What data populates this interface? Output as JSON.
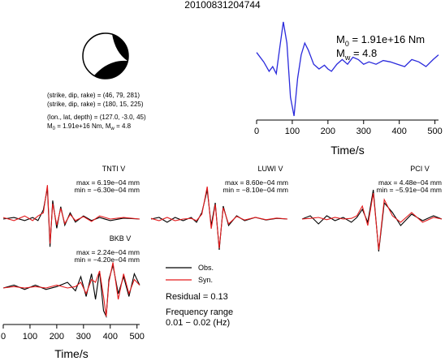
{
  "title": "20100831204744",
  "mechanism": {
    "colors": {
      "compression": "#000000",
      "dilatation": "#ffffff"
    },
    "lines": [
      "(strike, dip, rake) = (46, 79, 281)",
      "(strike, dip, rake) = (180, 15, 225)",
      "(lon., lat, depth) = (127.0, -3.0, 45)"
    ],
    "m0_line": {
      "prefix": "M",
      "sub": "0",
      "mid": " = 1.91e+16 Nm, M",
      "sub2": "w",
      "tail": " = 4.8"
    }
  },
  "stf": {
    "m0": {
      "prefix": "M",
      "sub": "0",
      "tail": " = 1.91e+16 Nm"
    },
    "mw": {
      "prefix": "M",
      "sub": "w",
      "tail": " = 4.8"
    },
    "xlabel": "Time/s",
    "ticks": [
      "0",
      "100",
      "200",
      "300",
      "400",
      "500"
    ],
    "color": "#2a2adc"
  },
  "legend": {
    "obs": "Obs.",
    "syn": "Syn.",
    "obs_color": "#000000",
    "syn_color": "#e41a1c"
  },
  "residual": "Residual = 0.13",
  "freq": {
    "line1": "Frequency range",
    "line2": "0.01 − 0.02 (Hz)"
  },
  "bottom_axis": {
    "xlabel": "Time/s",
    "ticks": [
      "0",
      "100",
      "200",
      "300",
      "400",
      "500"
    ]
  },
  "chart_data": [
    {
      "type": "line",
      "title": "",
      "xlabel": "Time/s",
      "ylabel": "",
      "xlim": [
        0,
        510
      ],
      "grid": false,
      "series": [
        {
          "name": "",
          "x": [
            0,
            20,
            35,
            45,
            55,
            65,
            75,
            85,
            95,
            105,
            115,
            125,
            135,
            145,
            160,
            175,
            190,
            200,
            210,
            225,
            240,
            255,
            270,
            285,
            300,
            315,
            335,
            355,
            375,
            395,
            415,
            435,
            455,
            475,
            495,
            510
          ],
          "values": [
            0.35,
            0.15,
            -0.05,
            0.05,
            -0.1,
            0.45,
            1.0,
            0.55,
            -0.6,
            -1.0,
            -0.2,
            0.3,
            0.55,
            0.4,
            0.1,
            0.0,
            0.08,
            0.0,
            -0.05,
            0.1,
            0.2,
            0.1,
            0.25,
            0.2,
            0.1,
            0.15,
            0.1,
            0.18,
            0.15,
            0.1,
            0.05,
            0.2,
            0.15,
            0.05,
            0.2,
            0.3
          ]
        }
      ]
    },
    {
      "type": "line",
      "title": "TNTI V",
      "annotations": [
        "max = 6.19e−04 mm",
        "min = −6.30e−04 mm"
      ],
      "xlim": [
        0,
        510
      ],
      "series": [
        {
          "name": "Obs.",
          "x": [
            0,
            40,
            80,
            110,
            130,
            150,
            165,
            175,
            185,
            200,
            215,
            230,
            250,
            270,
            300,
            330,
            360,
            400,
            450,
            510
          ],
          "values": [
            0.0,
            0.05,
            -0.05,
            0.05,
            -0.05,
            0.3,
            1.0,
            -0.9,
            0.6,
            -0.3,
            0.4,
            -0.2,
            0.2,
            -0.1,
            0.1,
            -0.05,
            0.05,
            -0.05,
            0.03,
            0.0
          ]
        },
        {
          "name": "Syn.",
          "x": [
            0,
            40,
            80,
            110,
            130,
            150,
            165,
            175,
            185,
            200,
            215,
            230,
            250,
            270,
            300,
            330,
            360,
            400,
            450,
            510
          ],
          "values": [
            0.05,
            -0.05,
            0.1,
            -0.05,
            0.1,
            0.2,
            1.1,
            -0.8,
            0.5,
            -0.2,
            0.35,
            -0.15,
            0.15,
            -0.05,
            0.08,
            -0.08,
            0.1,
            0.0,
            0.05,
            0.0
          ]
        }
      ]
    },
    {
      "type": "line",
      "title": "LUWI V",
      "annotations": [
        "max = 8.60e−04 mm",
        "min = −8.10e−04 mm"
      ],
      "xlim": [
        0,
        510
      ],
      "series": [
        {
          "name": "Obs.",
          "x": [
            0,
            30,
            60,
            90,
            120,
            150,
            170,
            190,
            210,
            225,
            240,
            255,
            270,
            290,
            320,
            350,
            390,
            430,
            470,
            510
          ],
          "values": [
            0.0,
            0.05,
            -0.1,
            0.05,
            -0.05,
            0.05,
            -0.1,
            0.2,
            0.9,
            -0.2,
            0.5,
            -0.95,
            0.4,
            -0.2,
            0.1,
            -0.05,
            0.05,
            -0.03,
            0.02,
            0.0
          ]
        },
        {
          "name": "Syn.",
          "x": [
            0,
            30,
            60,
            90,
            120,
            150,
            170,
            190,
            210,
            225,
            240,
            255,
            270,
            290,
            320,
            350,
            390,
            430,
            470,
            510
          ],
          "values": [
            0.02,
            -0.05,
            0.05,
            -0.05,
            0.0,
            0.02,
            -0.05,
            0.15,
            1.0,
            -0.3,
            0.45,
            -0.9,
            0.35,
            -0.15,
            0.08,
            -0.03,
            0.05,
            -0.02,
            0.03,
            0.0
          ]
        }
      ]
    },
    {
      "type": "line",
      "title": "PCI V",
      "annotations": [
        "max = 4.48e−04 mm",
        "min = −5.91e−04 mm"
      ],
      "xlim": [
        0,
        510
      ],
      "series": [
        {
          "name": "Obs.",
          "x": [
            0,
            30,
            60,
            90,
            120,
            150,
            180,
            200,
            220,
            240,
            260,
            280,
            300,
            330,
            360,
            400,
            440,
            480,
            510
          ],
          "values": [
            0.0,
            0.1,
            -0.15,
            0.1,
            -0.05,
            0.05,
            -0.1,
            0.05,
            0.3,
            -0.1,
            0.9,
            -1.0,
            0.5,
            0.2,
            -0.2,
            0.15,
            -0.05,
            0.1,
            0.0
          ]
        },
        {
          "name": "Syn.",
          "x": [
            0,
            30,
            60,
            90,
            120,
            150,
            180,
            200,
            220,
            240,
            260,
            280,
            300,
            330,
            360,
            400,
            440,
            480,
            510
          ],
          "values": [
            0.0,
            0.02,
            0.05,
            -0.02,
            0.05,
            0.0,
            0.02,
            0.1,
            0.4,
            -0.2,
            0.8,
            -0.95,
            0.6,
            0.1,
            -0.1,
            0.2,
            -0.1,
            0.05,
            0.0
          ]
        }
      ]
    },
    {
      "type": "line",
      "title": "BKB V",
      "annotations": [
        "max = 2.24e−04 mm",
        "min = −4.20e−04 mm"
      ],
      "xlabel": "Time/s",
      "xlim": [
        0,
        510
      ],
      "series": [
        {
          "name": "Obs.",
          "x": [
            0,
            40,
            80,
            120,
            160,
            200,
            240,
            270,
            290,
            310,
            330,
            345,
            360,
            375,
            385,
            395,
            410,
            430,
            450,
            470,
            490,
            510
          ],
          "values": [
            0.0,
            0.1,
            -0.05,
            0.1,
            -0.05,
            0.05,
            0.2,
            -0.1,
            0.4,
            -0.3,
            0.5,
            -0.4,
            0.6,
            -0.8,
            -1.0,
            0.3,
            0.8,
            -0.2,
            0.4,
            -0.3,
            0.5,
            0.1
          ]
        },
        {
          "name": "Syn.",
          "x": [
            0,
            40,
            80,
            120,
            160,
            200,
            240,
            270,
            290,
            310,
            330,
            345,
            360,
            375,
            385,
            395,
            410,
            430,
            450,
            470,
            490,
            510
          ],
          "values": [
            0.0,
            0.05,
            0.0,
            0.05,
            0.0,
            0.1,
            0.0,
            0.05,
            0.2,
            -0.2,
            0.3,
            0.2,
            0.6,
            -0.3,
            -1.0,
            0.2,
            0.9,
            -0.4,
            0.5,
            -0.2,
            0.3,
            0.1
          ]
        }
      ]
    }
  ]
}
